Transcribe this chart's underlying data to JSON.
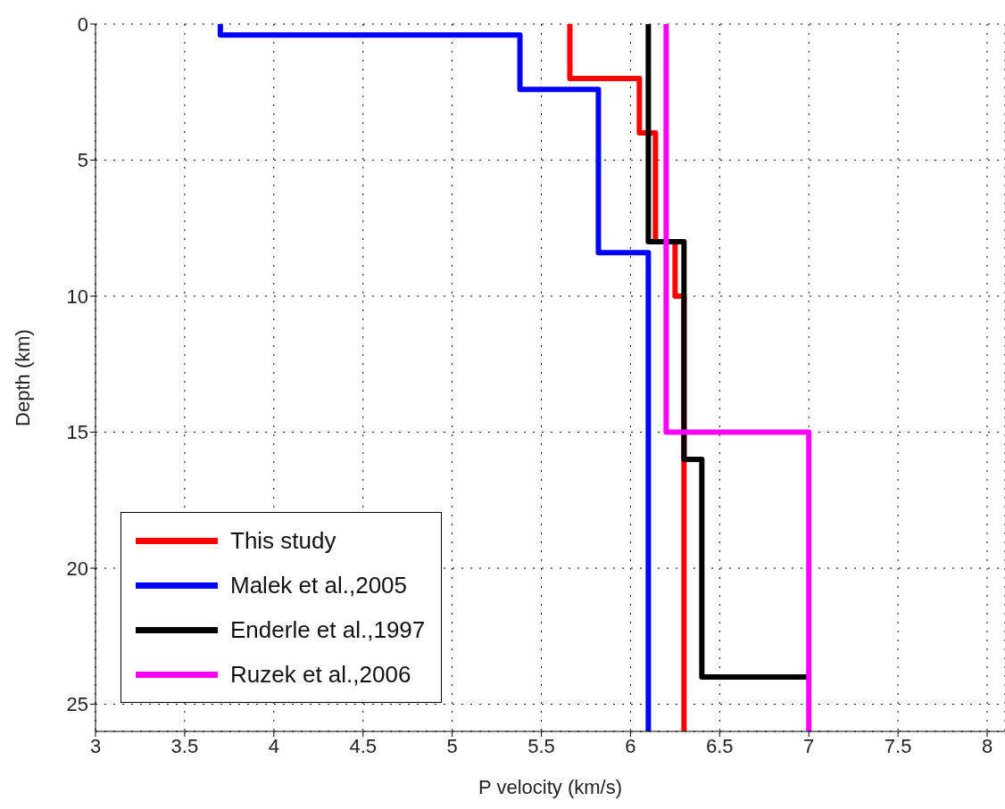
{
  "chart_data": {
    "type": "line",
    "xlabel": "P velocity (km/s)",
    "ylabel": "Depth (km)",
    "xlim": [
      3,
      8.1
    ],
    "xticks": [
      3,
      3.5,
      4,
      4.5,
      5,
      5.5,
      6,
      6.5,
      7,
      7.5,
      8
    ],
    "ylim": [
      26,
      0
    ],
    "yticks": [
      0,
      5,
      10,
      15,
      20,
      25
    ],
    "grid": true,
    "legend": "bottom left",
    "line_style": "solid",
    "marker": "none",
    "series": [
      {
        "name": "This study",
        "color": "#ff0000",
        "x": [
          5.66,
          5.66,
          6.05,
          6.05,
          6.14,
          6.14,
          6.25,
          6.25,
          6.3,
          6.3
        ],
        "values": [
          0,
          2,
          2,
          4,
          4,
          8,
          8,
          10,
          10,
          26
        ]
      },
      {
        "name": "Malek et al.,2005",
        "color": "#0000ff",
        "x": [
          3.7,
          3.7,
          5.38,
          5.38,
          5.82,
          5.82,
          6.1,
          6.1
        ],
        "values": [
          0,
          0.4,
          0.4,
          2.4,
          2.4,
          8.4,
          8.4,
          26
        ]
      },
      {
        "name": "Enderle et al.,1997",
        "color": "#000000",
        "x": [
          6.1,
          6.1,
          6.3,
          6.3,
          6.4,
          6.4,
          7.0
        ],
        "values": [
          0,
          8,
          8,
          16,
          16,
          24,
          24
        ]
      },
      {
        "name": "Ruzek et al.,2006",
        "color": "#ff00ff",
        "x": [
          6.2,
          6.2,
          7.0,
          7.0
        ],
        "values": [
          0,
          15,
          15,
          26
        ]
      }
    ]
  }
}
